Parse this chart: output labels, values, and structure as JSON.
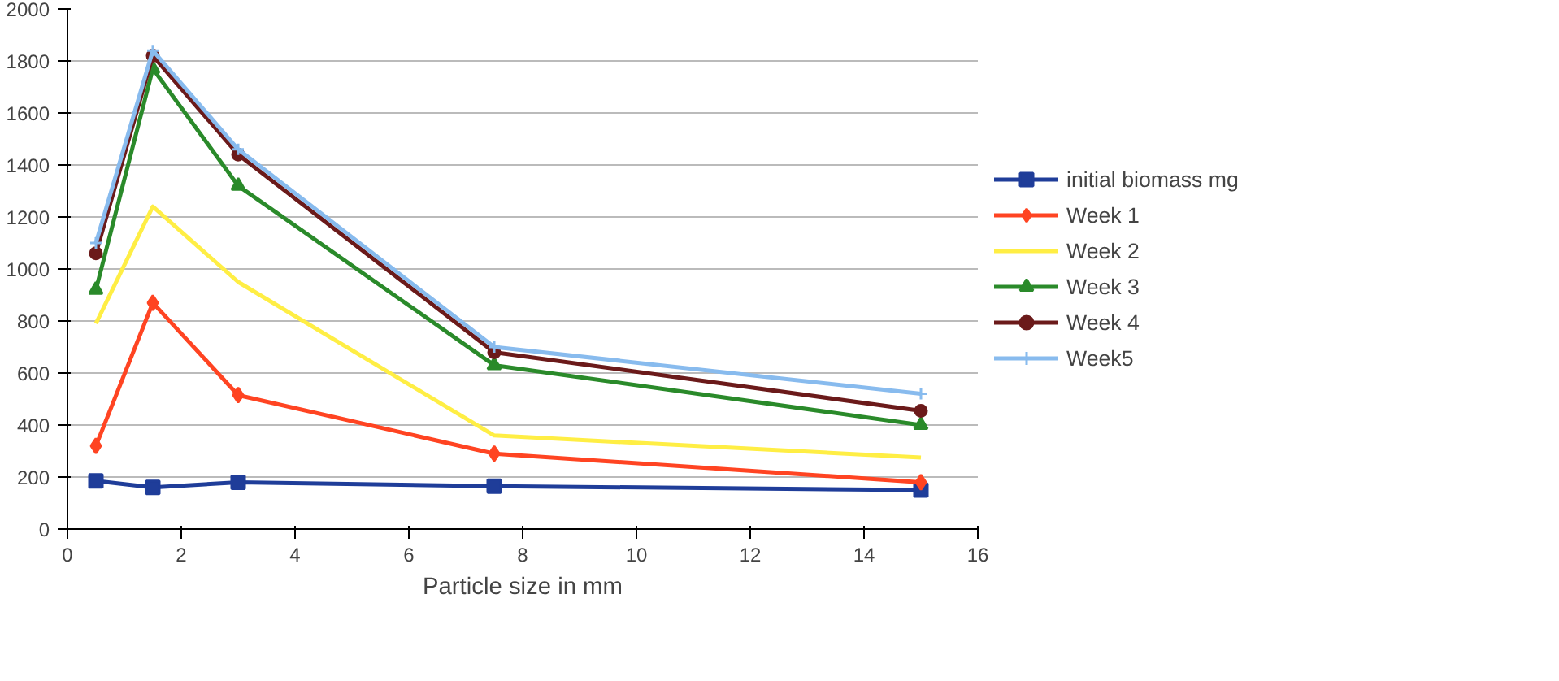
{
  "chart_data": {
    "type": "line",
    "xlabel": "Particle size in mm",
    "x": [
      0.5,
      1.5,
      3,
      7.5,
      15
    ],
    "xlim": [
      0,
      16
    ],
    "xticks": [
      0,
      2,
      4,
      6,
      8,
      10,
      12,
      14,
      16
    ],
    "ylim": [
      0,
      2000
    ],
    "yticks": [
      0,
      200,
      400,
      600,
      800,
      1000,
      1200,
      1400,
      1600,
      1800,
      2000
    ],
    "grid": "y",
    "legend": "right",
    "series": [
      {
        "name": "initial biomass mg",
        "color": "#1f3d99",
        "marker": "square",
        "values": [
          185,
          160,
          180,
          165,
          150
        ]
      },
      {
        "name": "Week 1",
        "color": "#ff4422",
        "marker": "diamond",
        "values": [
          320,
          870,
          515,
          290,
          180
        ]
      },
      {
        "name": "Week 2",
        "color": "#ffee44",
        "marker": "none",
        "values": [
          790,
          1240,
          950,
          360,
          275
        ]
      },
      {
        "name": "Week 3",
        "color": "#2a8a2a",
        "marker": "triangle",
        "values": [
          920,
          1770,
          1320,
          630,
          400
        ]
      },
      {
        "name": "Week 4",
        "color": "#6b1a1a",
        "marker": "circle",
        "values": [
          1060,
          1820,
          1440,
          680,
          455
        ]
      },
      {
        "name": "Week5",
        "color": "#88bbee",
        "marker": "cross",
        "values": [
          1100,
          1840,
          1460,
          700,
          520
        ]
      }
    ]
  }
}
